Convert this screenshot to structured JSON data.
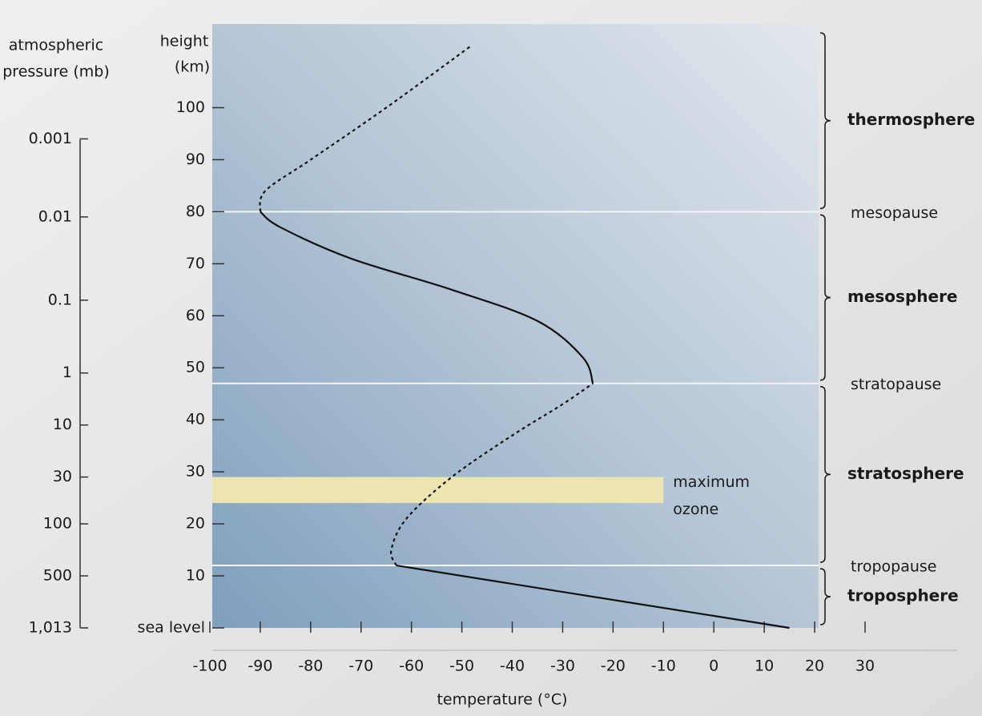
{
  "chart_data": {
    "type": "line",
    "title_y": [
      "height",
      "(km)"
    ],
    "title_x": "temperature (°C)",
    "title_pressure": [
      "atmospheric",
      "pressure (mb)"
    ],
    "xlim": [
      -100,
      30
    ],
    "xticks": [
      -100,
      -90,
      -80,
      -70,
      -60,
      -50,
      -40,
      -30,
      -20,
      -10,
      0,
      10,
      20,
      30
    ],
    "ylim": [
      0,
      115
    ],
    "yticks": [
      {
        "value": 0,
        "label": "sea level"
      },
      10,
      20,
      30,
      40,
      50,
      60,
      70,
      80,
      90,
      100
    ],
    "pressure_ticks": [
      0.001,
      0.01,
      0.1,
      1,
      10,
      30,
      100,
      500,
      {
        "value": 1013,
        "label": "1,013"
      }
    ],
    "pressure_heights": [
      94,
      79,
      63,
      49,
      39,
      29,
      20,
      10,
      0
    ],
    "color": "#111111",
    "series": [
      {
        "style": "solid",
        "x": [
          15,
          -63
        ],
        "y": [
          0,
          12
        ]
      },
      {
        "style": "dashed",
        "x": [
          -63,
          -64,
          -61,
          -52,
          -40,
          -30,
          -24
        ],
        "y": [
          12,
          15,
          21,
          29,
          37,
          43,
          47
        ]
      },
      {
        "style": "solid",
        "x": [
          -24,
          -26,
          -35,
          -52,
          -72,
          -86,
          -90
        ],
        "y": [
          47,
          52,
          59,
          65,
          71,
          77,
          80
        ]
      },
      {
        "style": "dashed",
        "x": [
          -90,
          -89,
          -80,
          -65,
          -48
        ],
        "y": [
          80,
          84,
          90,
          100,
          112
        ]
      }
    ],
    "ozone_band": {
      "label": [
        "maximum",
        "ozone"
      ],
      "bottom": 24,
      "top": 29,
      "xmin": -100,
      "xmax": -10,
      "color": "#ece5b0"
    },
    "boundaries": [
      {
        "name": "tropopause",
        "height": 12
      },
      {
        "name": "stratopause",
        "height": 47
      },
      {
        "name": "mesopause",
        "height": 80
      }
    ],
    "layers": [
      {
        "name": "troposphere",
        "bottom": 0,
        "top": 12
      },
      {
        "name": "stratosphere",
        "bottom": 12,
        "top": 47
      },
      {
        "name": "mesosphere",
        "bottom": 47,
        "top": 80
      },
      {
        "name": "thermosphere",
        "bottom": 80,
        "top": 115
      }
    ]
  }
}
